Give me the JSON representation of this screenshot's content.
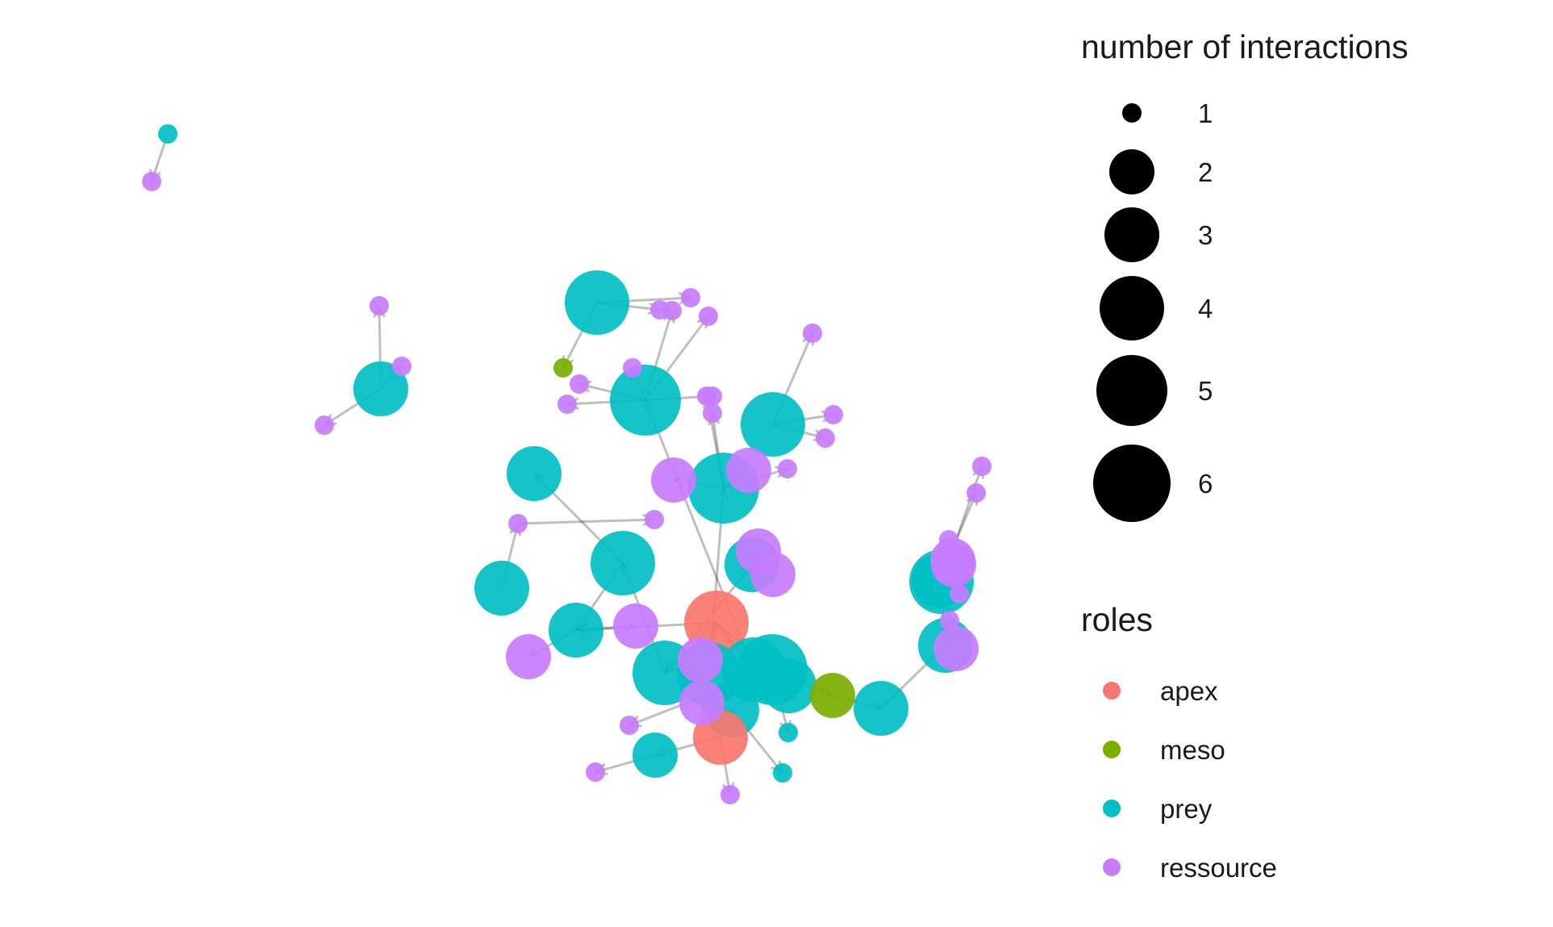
{
  "network": {
    "roles_colors": {
      "apex": "#F8766D",
      "meso": "#7CAE00",
      "prey": "#00BFC4",
      "ressource": "#C77CFF"
    },
    "edge_color": "#000000",
    "nodes": [
      {
        "id": "n01",
        "role": "prey",
        "interactions": 1
      },
      {
        "id": "n02",
        "role": "ressource",
        "interactions": 1
      },
      {
        "id": "n03",
        "role": "ressource",
        "interactions": 1
      },
      {
        "id": "n04",
        "role": "ressource",
        "interactions": 1
      },
      {
        "id": "n05",
        "role": "prey",
        "interactions": 3
      },
      {
        "id": "n06",
        "role": "ressource",
        "interactions": 1
      },
      {
        "id": "n07",
        "role": "prey",
        "interactions": 4
      },
      {
        "id": "n08",
        "role": "ressource",
        "interactions": 1
      },
      {
        "id": "n09",
        "role": "ressource",
        "interactions": 1
      },
      {
        "id": "n10",
        "role": "ressource",
        "interactions": 1
      },
      {
        "id": "n11",
        "role": "ressource",
        "interactions": 1
      },
      {
        "id": "n12",
        "role": "meso",
        "interactions": 1
      },
      {
        "id": "n13",
        "role": "ressource",
        "interactions": 1
      },
      {
        "id": "n14",
        "role": "ressource",
        "interactions": 1
      },
      {
        "id": "n15",
        "role": "ressource",
        "interactions": 1
      },
      {
        "id": "n16",
        "role": "prey",
        "interactions": 5
      },
      {
        "id": "n17",
        "role": "ressource",
        "interactions": 1
      },
      {
        "id": "n18",
        "role": "ressource",
        "interactions": 1
      },
      {
        "id": "n19",
        "role": "prey",
        "interactions": 4
      },
      {
        "id": "n20",
        "role": "ressource",
        "interactions": 1
      },
      {
        "id": "n21",
        "role": "ressource",
        "interactions": 1
      },
      {
        "id": "n22",
        "role": "ressource",
        "interactions": 1
      },
      {
        "id": "n23",
        "role": "ressource",
        "interactions": 1
      },
      {
        "id": "n24",
        "role": "ressource",
        "interactions": 1
      },
      {
        "id": "n25",
        "role": "ressource",
        "interactions": 2
      },
      {
        "id": "n26",
        "role": "ressource",
        "interactions": 2
      },
      {
        "id": "n27",
        "role": "prey",
        "interactions": 3
      },
      {
        "id": "n28",
        "role": "ressource",
        "interactions": 1
      },
      {
        "id": "n29",
        "role": "prey",
        "interactions": 5
      },
      {
        "id": "n30",
        "role": "ressource",
        "interactions": 1
      },
      {
        "id": "n31",
        "role": "prey",
        "interactions": 4
      },
      {
        "id": "n32",
        "role": "prey",
        "interactions": 3
      },
      {
        "id": "n33",
        "role": "prey",
        "interactions": 3
      },
      {
        "id": "n34",
        "role": "ressource",
        "interactions": 2
      },
      {
        "id": "n35",
        "role": "ressource",
        "interactions": 2
      },
      {
        "id": "n36",
        "role": "prey",
        "interactions": 3
      },
      {
        "id": "n37",
        "role": "ressource",
        "interactions": 2
      },
      {
        "id": "n38",
        "role": "ressource",
        "interactions": 2
      },
      {
        "id": "n39",
        "role": "apex",
        "interactions": 4
      },
      {
        "id": "n40",
        "role": "ressource",
        "interactions": 2
      },
      {
        "id": "n41",
        "role": "prey",
        "interactions": 4
      },
      {
        "id": "n42",
        "role": "prey",
        "interactions": 4
      },
      {
        "id": "n43",
        "role": "prey",
        "interactions": 4
      },
      {
        "id": "n44",
        "role": "prey",
        "interactions": 5
      },
      {
        "id": "n45",
        "role": "meso",
        "interactions": 2
      },
      {
        "id": "n46",
        "role": "prey",
        "interactions": 3
      },
      {
        "id": "n47",
        "role": "ressource",
        "interactions": 2
      },
      {
        "id": "n48",
        "role": "prey",
        "interactions": 3
      },
      {
        "id": "n49",
        "role": "apex",
        "interactions": 3
      },
      {
        "id": "n50",
        "role": "prey",
        "interactions": 2
      },
      {
        "id": "n51",
        "role": "ressource",
        "interactions": 1
      },
      {
        "id": "n52",
        "role": "ressource",
        "interactions": 1
      },
      {
        "id": "n53",
        "role": "prey",
        "interactions": 1
      },
      {
        "id": "n54",
        "role": "prey",
        "interactions": 1
      },
      {
        "id": "n55",
        "role": "ressource",
        "interactions": 1
      },
      {
        "id": "n56",
        "role": "prey",
        "interactions": 3
      },
      {
        "id": "n57",
        "role": "ressource",
        "interactions": 2
      },
      {
        "id": "n58",
        "role": "ressource",
        "interactions": 1
      },
      {
        "id": "n59",
        "role": "ressource",
        "interactions": 1
      },
      {
        "id": "n60",
        "role": "prey",
        "interactions": 3
      },
      {
        "id": "n61",
        "role": "ressource",
        "interactions": 2
      },
      {
        "id": "n62",
        "role": "ressource",
        "interactions": 1
      },
      {
        "id": "n63",
        "role": "ressource",
        "interactions": 1
      },
      {
        "id": "n64",
        "role": "prey",
        "interactions": 4
      },
      {
        "id": "n65",
        "role": "ressource",
        "interactions": 2
      },
      {
        "id": "n66",
        "role": "prey",
        "interactions": 3
      },
      {
        "id": "n67",
        "role": "ressource",
        "interactions": 1
      }
    ],
    "edges": [
      [
        "n01",
        "n02"
      ],
      [
        "n05",
        "n03"
      ],
      [
        "n05",
        "n04"
      ],
      [
        "n05",
        "n06"
      ],
      [
        "n07",
        "n08"
      ],
      [
        "n07",
        "n09"
      ],
      [
        "n07",
        "n12"
      ],
      [
        "n16",
        "n10"
      ],
      [
        "n16",
        "n11"
      ],
      [
        "n16",
        "n13"
      ],
      [
        "n16",
        "n14"
      ],
      [
        "n16",
        "n15"
      ],
      [
        "n16",
        "n17"
      ],
      [
        "n19",
        "n18"
      ],
      [
        "n19",
        "n20"
      ],
      [
        "n19",
        "n21"
      ],
      [
        "n29",
        "n22"
      ],
      [
        "n29",
        "n23"
      ],
      [
        "n29",
        "n24"
      ],
      [
        "n29",
        "n25"
      ],
      [
        "n29",
        "n26"
      ],
      [
        "n31",
        "n27"
      ],
      [
        "n31",
        "n36"
      ],
      [
        "n32",
        "n28"
      ],
      [
        "n28",
        "n30"
      ],
      [
        "n33",
        "n34"
      ],
      [
        "n33",
        "n35"
      ],
      [
        "n33",
        "n41"
      ],
      [
        "n36",
        "n37"
      ],
      [
        "n36",
        "n38"
      ],
      [
        "n39",
        "n40"
      ],
      [
        "n39",
        "n41"
      ],
      [
        "n39",
        "n42"
      ],
      [
        "n39",
        "n43"
      ],
      [
        "n39",
        "n44"
      ],
      [
        "n39",
        "n36"
      ],
      [
        "n44",
        "n45"
      ],
      [
        "n44",
        "n46"
      ],
      [
        "n44",
        "n51"
      ],
      [
        "n44",
        "n53"
      ],
      [
        "n49",
        "n47"
      ],
      [
        "n49",
        "n48"
      ],
      [
        "n49",
        "n50"
      ],
      [
        "n49",
        "n52"
      ],
      [
        "n50",
        "n55"
      ],
      [
        "n48",
        "n54"
      ],
      [
        "n45",
        "n56"
      ],
      [
        "n56",
        "n60"
      ],
      [
        "n60",
        "n61"
      ],
      [
        "n60",
        "n62"
      ],
      [
        "n60",
        "n64"
      ],
      [
        "n60",
        "n65"
      ],
      [
        "n64",
        "n63"
      ],
      [
        "n64",
        "n66"
      ],
      [
        "n66",
        "n67"
      ],
      [
        "n42",
        "n29"
      ],
      [
        "n43",
        "n16"
      ],
      [
        "n41",
        "n31"
      ]
    ]
  },
  "legend": {
    "size": {
      "title": "number of interactions",
      "items": [
        {
          "value": 1,
          "label": "1"
        },
        {
          "value": 2,
          "label": "2"
        },
        {
          "value": 3,
          "label": "3"
        },
        {
          "value": 4,
          "label": "4"
        },
        {
          "value": 5,
          "label": "5"
        },
        {
          "value": 6,
          "label": "6"
        }
      ]
    },
    "roles": {
      "title": "roles",
      "items": [
        {
          "role": "apex",
          "label": "apex"
        },
        {
          "role": "meso",
          "label": "meso"
        },
        {
          "role": "prey",
          "label": "prey"
        },
        {
          "role": "ressource",
          "label": "ressource"
        }
      ]
    }
  }
}
